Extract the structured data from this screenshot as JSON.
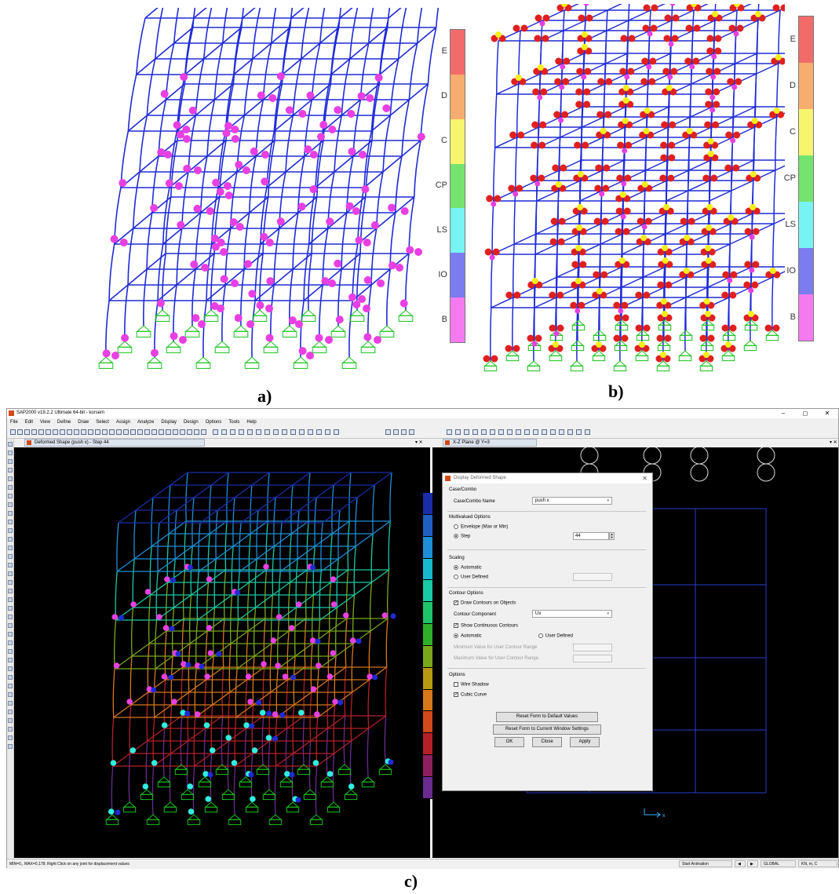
{
  "panels": {
    "a": "a)",
    "b": "b)",
    "c": "c)"
  },
  "hinge_scale": {
    "labels": [
      "E",
      "D",
      "C",
      "CP",
      "LS",
      "IO",
      "B"
    ],
    "colors": [
      "#f26b6b",
      "#f7ad6f",
      "#f7f56e",
      "#74e36f",
      "#78f3f3",
      "#7b7cf0",
      "#f57af0"
    ]
  },
  "colors": {
    "frame_blue": "#1f2bd6",
    "hinge_magenta": "#e83fe3",
    "hinge_red": "#e0201e",
    "hinge_yellow": "#f2ef1a",
    "support_green": "#16c21a"
  },
  "sap": {
    "title": "SAP2000 v19.2.2 Ultimate 64-bit - korsem",
    "window_controls": [
      "–",
      "◻",
      "✕"
    ],
    "menu": [
      "File",
      "Edit",
      "View",
      "Define",
      "Draw",
      "Select",
      "Assign",
      "Analyze",
      "Display",
      "Design",
      "Options",
      "Tools",
      "Help"
    ],
    "tab_left": "Deformed Shape (push x) - Step 44",
    "tab_right": "X-Z Plane @ Y=3",
    "tab_close": "▾ ✕",
    "status_left": "MIN=0,, MAX=0,178; Right Click on any joint for displacement values",
    "status_anim": "Start Animation",
    "status_coord": "GLOBAL",
    "status_units": "KN, m, C",
    "contour_colors": [
      "#1a2da8",
      "#1f5fc4",
      "#1d8fd8",
      "#18b8d0",
      "#19c9a5",
      "#1ec46a",
      "#2fb02a",
      "#7aa81b",
      "#b89a12",
      "#d8771a",
      "#d04a1c",
      "#b52027",
      "#8e1f5e",
      "#6a2a8e"
    ],
    "axis_label": "x"
  },
  "dialog": {
    "title": "Display Deformed Shape",
    "close": "✕",
    "case_combo": {
      "group": "Case/Combo",
      "label": "Case/Combo Name",
      "value": "push x"
    },
    "multivalued": {
      "group": "Multivalued Options",
      "envelope": "Envelope (Max or Min)",
      "step": "Step",
      "step_value": "44"
    },
    "scaling": {
      "group": "Scaling",
      "automatic": "Automatic",
      "user_defined": "User Defined"
    },
    "contour": {
      "group": "Contour Options",
      "draw_contours": "Draw Contours on Objects",
      "component_label": "Contour Component",
      "component_value": "Ux",
      "continuous": "Show Continuous Contours",
      "automatic": "Automatic",
      "user_defined": "User Defined",
      "min_label": "Minimum Value for User Contour Range",
      "max_label": "Maximum Value for User Contour Range"
    },
    "options": {
      "group": "Options",
      "wire_shadow": "Wire Shadow",
      "cubic_curve": "Cubic Curve"
    },
    "buttons": {
      "reset_default": "Reset Form to Default Values",
      "reset_current": "Reset Form to Current Window Settings",
      "ok": "OK",
      "close": "Close",
      "apply": "Apply"
    }
  }
}
